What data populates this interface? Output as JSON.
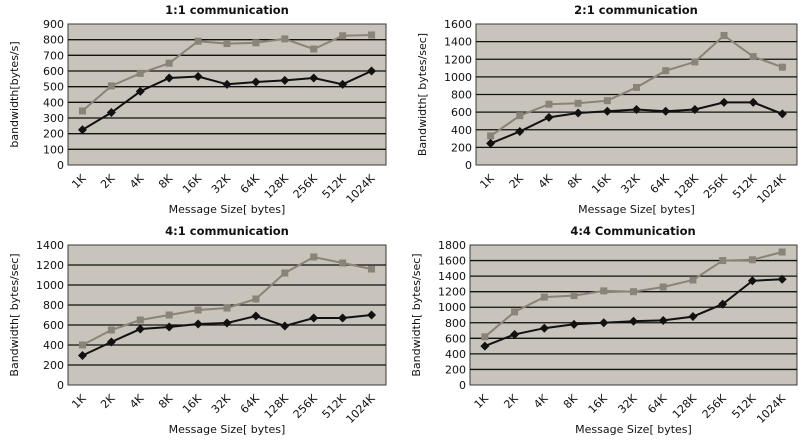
{
  "chart_data": [
    {
      "type": "line",
      "title": "1:1 communication",
      "xlabel": "Message Size[ bytes]",
      "ylabel": "bandwidth[bytes/s]",
      "categories": [
        "1K",
        "2K",
        "4K",
        "8K",
        "16K",
        "32K",
        "64K",
        "128K",
        "256K",
        "512K",
        "1024K"
      ],
      "ylim": [
        0,
        900
      ],
      "yticks": [
        0,
        100,
        200,
        300,
        400,
        500,
        600,
        700,
        800,
        900
      ],
      "grid": true,
      "series": [
        {
          "color": "#8a8377",
          "marker": "square",
          "values": [
            345,
            505,
            585,
            650,
            790,
            775,
            780,
            805,
            740,
            825,
            830
          ]
        },
        {
          "color": "#111111",
          "marker": "diamond",
          "values": [
            225,
            335,
            470,
            555,
            565,
            515,
            530,
            540,
            555,
            515,
            600
          ]
        }
      ]
    },
    {
      "type": "line",
      "title": "2:1 communication",
      "xlabel": "Message Size[ bytes]",
      "ylabel": "Bandwidth[ bytes/sec]",
      "categories": [
        "1K",
        "2K",
        "4K",
        "8K",
        "16K",
        "32K",
        "64K",
        "128K",
        "256K",
        "512K",
        "1024K"
      ],
      "ylim": [
        0,
        1600
      ],
      "yticks": [
        0,
        200,
        400,
        600,
        800,
        1000,
        1200,
        1400,
        1600
      ],
      "grid": true,
      "series": [
        {
          "color": "#8a8377",
          "marker": "square",
          "values": [
            330,
            560,
            690,
            700,
            730,
            880,
            1070,
            1170,
            1470,
            1230,
            1110
          ]
        },
        {
          "color": "#111111",
          "marker": "diamond",
          "values": [
            245,
            380,
            540,
            590,
            610,
            630,
            610,
            630,
            710,
            710,
            580
          ]
        }
      ]
    },
    {
      "type": "line",
      "title": "4:1 communication",
      "xlabel": "Message Size[ bytes]",
      "ylabel": "Bandwidth[ bytes/sec]",
      "categories": [
        "1K",
        "2K",
        "4K",
        "8K",
        "16K",
        "32K",
        "64K",
        "128K",
        "256K",
        "512K",
        "1024K"
      ],
      "ylim": [
        0,
        1400
      ],
      "yticks": [
        0,
        200,
        400,
        600,
        800,
        1000,
        1200,
        1400
      ],
      "grid": true,
      "series": [
        {
          "color": "#8a8377",
          "marker": "square",
          "values": [
            400,
            550,
            650,
            700,
            750,
            770,
            860,
            1120,
            1280,
            1220,
            1160
          ]
        },
        {
          "color": "#111111",
          "marker": "diamond",
          "values": [
            295,
            430,
            560,
            580,
            610,
            620,
            690,
            590,
            670,
            670,
            700
          ]
        }
      ]
    },
    {
      "type": "line",
      "title": "4:4 Communication",
      "xlabel": "Message Size[ bytes]",
      "ylabel": "Bandwidth[ bytes/sec]",
      "categories": [
        "1K",
        "2K",
        "4K",
        "8K",
        "16K",
        "32K",
        "64K",
        "128K",
        "256K",
        "512K",
        "1024K"
      ],
      "ylim": [
        0,
        1800
      ],
      "yticks": [
        0,
        200,
        400,
        600,
        800,
        1000,
        1200,
        1400,
        1600,
        1800
      ],
      "grid": true,
      "series": [
        {
          "color": "#8a8377",
          "marker": "square",
          "values": [
            620,
            940,
            1130,
            1150,
            1210,
            1200,
            1260,
            1350,
            1600,
            1610,
            1710
          ]
        },
        {
          "color": "#111111",
          "marker": "diamond",
          "values": [
            500,
            650,
            730,
            780,
            800,
            820,
            830,
            880,
            1040,
            1340,
            1360
          ]
        }
      ]
    }
  ]
}
